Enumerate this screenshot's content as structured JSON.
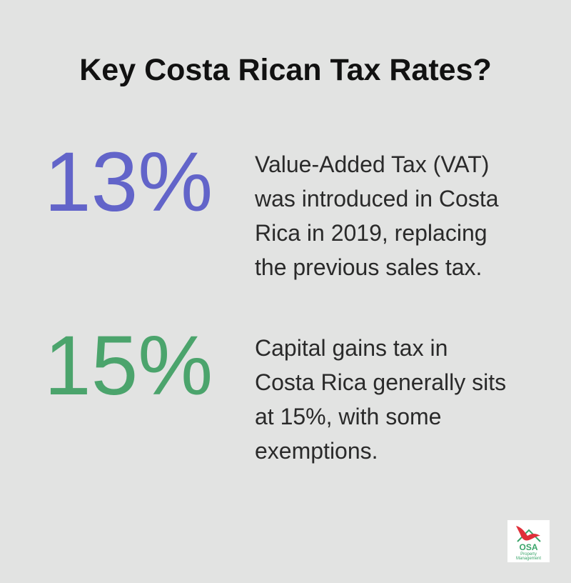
{
  "header": {
    "title": "Key Costa Rican Tax Rates?"
  },
  "items": [
    {
      "stat": "13%",
      "color": "#6264c9",
      "description_lines": [
        "Value-Added Tax (VAT)",
        "was introduced in Costa",
        "Rica in 2019, replacing",
        "the previous sales tax."
      ]
    },
    {
      "stat": "15%",
      "color": "#4ba46c",
      "description_lines": [
        "Capital gains tax in",
        "Costa Rica generally sits",
        "at 15%, with some",
        "exemptions."
      ]
    }
  ],
  "logo": {
    "name": "OSA",
    "line1": "Property",
    "line2": "Management"
  }
}
